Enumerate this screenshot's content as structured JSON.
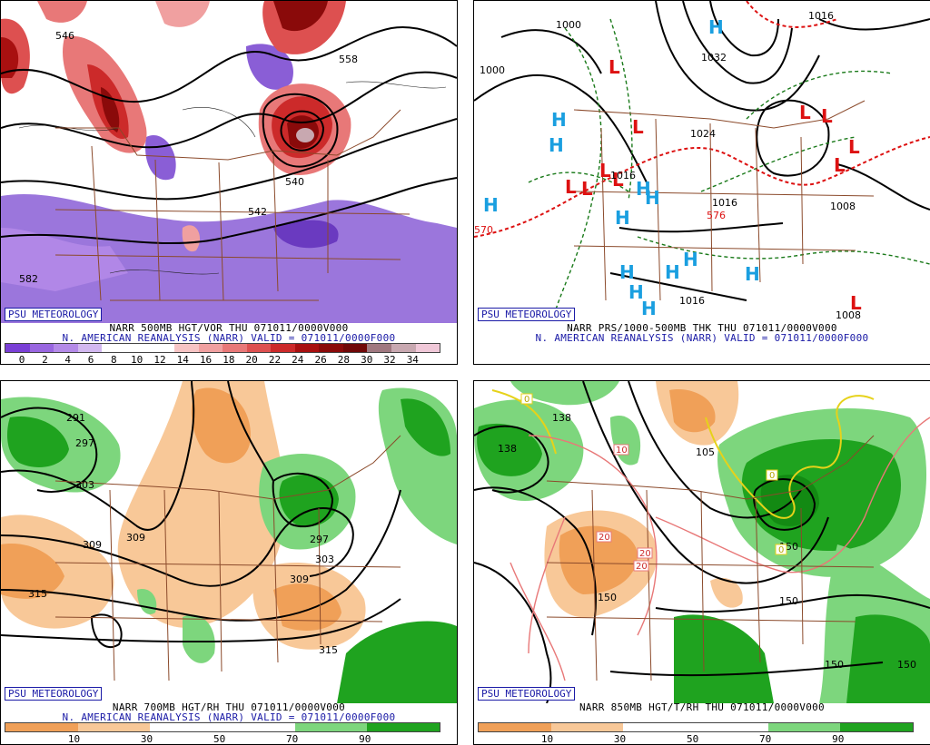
{
  "credit": "PSU METEOROLOGY",
  "reanalysis": "N. AMERICAN REANALYSIS (NARR) VALID = 071011/0000F000",
  "panels": [
    {
      "title": "NARR 500MB HGT/VOR THU 071011/0000V000",
      "legend_ticks": [
        "0",
        "2",
        "4",
        "6",
        "8",
        "10",
        "12",
        "14",
        "16",
        "18",
        "20",
        "22",
        "24",
        "26",
        "28",
        "30",
        "32",
        "34"
      ],
      "legend_colors": [
        "#7a3fd6",
        "#9966e0",
        "#b48ae8",
        "#d2b8f0",
        "#ffffff",
        "#ffffff",
        "#ffffff",
        "#f7c4c4",
        "#f0a0a0",
        "#e87878",
        "#dd5050",
        "#cc2a2a",
        "#a81010",
        "#8a0a0a",
        "#700808",
        "#a07880",
        "#c8a8b0",
        "#f0c8d8"
      ],
      "contour_labels": [
        "546",
        "558",
        "540",
        "542",
        "582"
      ]
    },
    {
      "title": "NARR PRS/1000-500MB THK THU 071011/0000V000",
      "contour_labels": [
        "1000",
        "1016",
        "1032",
        "1024",
        "1016",
        "1008",
        "1008",
        "1016",
        "570",
        "576",
        "1000",
        "1016"
      ],
      "pressure_highs": "H",
      "pressure_lows": "L"
    },
    {
      "title": "NARR 700MB HGT/RH THU 071011/0000V000",
      "legend_ticks": [
        "10",
        "30",
        "50",
        "70",
        "90"
      ],
      "legend_colors": [
        "#f0a058",
        "#f8c898",
        "#ffffff",
        "#ffffff",
        "#7dd67d",
        "#1fa31f"
      ],
      "contour_labels": [
        "291",
        "297",
        "303",
        "309",
        "309",
        "297",
        "309",
        "303",
        "315",
        "315"
      ]
    },
    {
      "title": "NARR 850MB HGT/T/RH THU 071011/0000V000",
      "legend_ticks": [
        "10",
        "30",
        "50",
        "70",
        "90"
      ],
      "legend_colors": [
        "#f0a058",
        "#f8c898",
        "#ffffff",
        "#ffffff",
        "#7dd67d",
        "#1fa31f"
      ],
      "contour_labels": [
        "138",
        "138",
        "105",
        "150",
        "150",
        "150",
        "150",
        "150"
      ],
      "temp_labels": [
        "0",
        "10",
        "20",
        "20",
        "20",
        "0",
        "0"
      ]
    }
  ],
  "colors": {
    "credit": "#1a1aa6",
    "borders": "#8b4a2b",
    "high": "#1a9fe0",
    "low": "#dd1111"
  }
}
